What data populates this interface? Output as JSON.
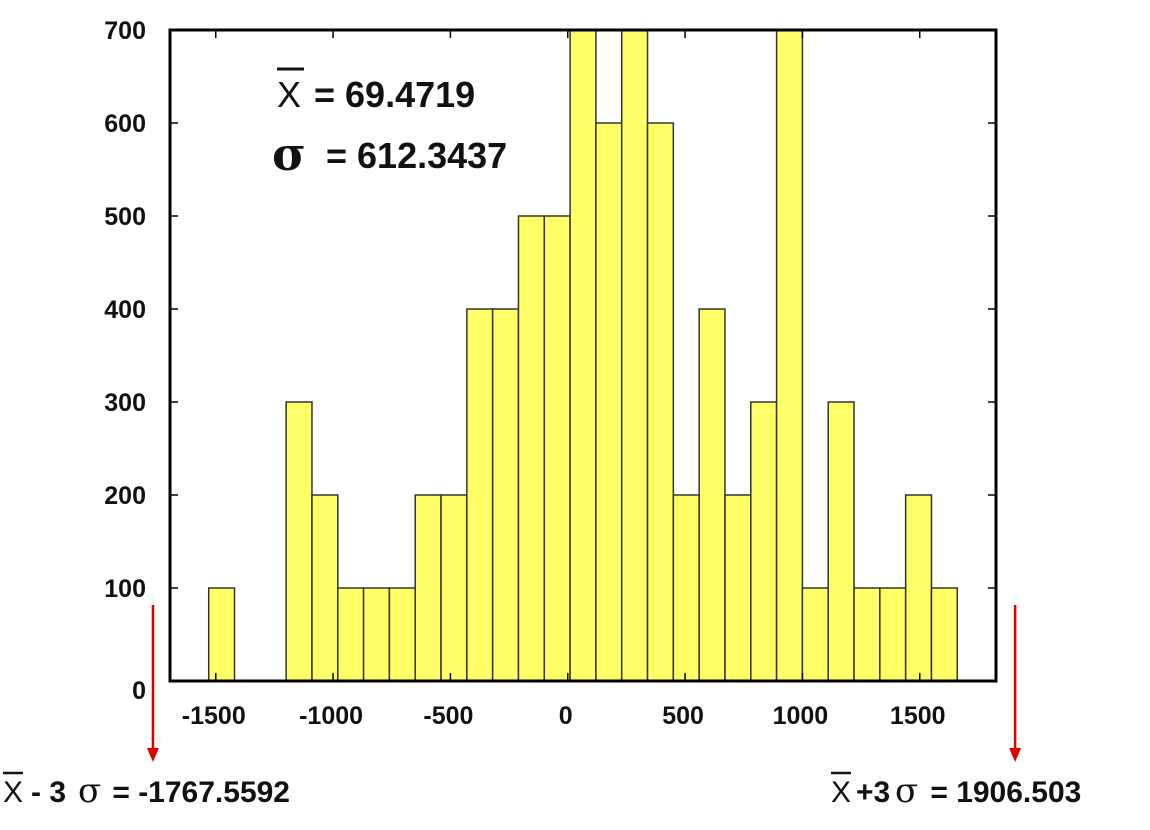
{
  "chart_data": {
    "type": "bar",
    "xlim": [
      -1695,
      1825
    ],
    "ylim": [
      0,
      700
    ],
    "x_ticks": [
      -1500,
      -1000,
      -500,
      0,
      500,
      1000,
      1500
    ],
    "x_tick_labels": [
      "-1500",
      "-1000",
      "-500",
      "0",
      "500",
      "1000",
      "1500"
    ],
    "y_ticks": [
      0,
      100,
      200,
      300,
      400,
      500,
      600,
      700
    ],
    "y_tick_labels": [
      "0",
      "100",
      "200",
      "300",
      "400",
      "500",
      "600",
      "700"
    ],
    "bin_width": 110,
    "bins": [
      {
        "x0": -1530,
        "x1": -1420,
        "value": 100
      },
      {
        "x0": -1200,
        "x1": -1090,
        "value": 300
      },
      {
        "x0": -1090,
        "x1": -980,
        "value": 200
      },
      {
        "x0": -980,
        "x1": -870,
        "value": 100
      },
      {
        "x0": -870,
        "x1": -760,
        "value": 100
      },
      {
        "x0": -760,
        "x1": -650,
        "value": 100
      },
      {
        "x0": -650,
        "x1": -540,
        "value": 200
      },
      {
        "x0": -540,
        "x1": -430,
        "value": 200
      },
      {
        "x0": -430,
        "x1": -320,
        "value": 400
      },
      {
        "x0": -320,
        "x1": -210,
        "value": 400
      },
      {
        "x0": -210,
        "x1": -100,
        "value": 500
      },
      {
        "x0": -100,
        "x1": 10,
        "value": 500
      },
      {
        "x0": 10,
        "x1": 120,
        "value": 700
      },
      {
        "x0": 120,
        "x1": 230,
        "value": 600
      },
      {
        "x0": 230,
        "x1": 340,
        "value": 700
      },
      {
        "x0": 340,
        "x1": 450,
        "value": 600
      },
      {
        "x0": 450,
        "x1": 560,
        "value": 200
      },
      {
        "x0": 560,
        "x1": 670,
        "value": 400
      },
      {
        "x0": 670,
        "x1": 780,
        "value": 200
      },
      {
        "x0": 780,
        "x1": 890,
        "value": 300
      },
      {
        "x0": 890,
        "x1": 1000,
        "value": 700
      },
      {
        "x0": 1000,
        "x1": 1110,
        "value": 100
      },
      {
        "x0": 1110,
        "x1": 1220,
        "value": 300
      },
      {
        "x0": 1220,
        "x1": 1330,
        "value": 100
      },
      {
        "x0": 1330,
        "x1": 1440,
        "value": 100
      },
      {
        "x0": 1440,
        "x1": 1550,
        "value": 200
      },
      {
        "x0": 1550,
        "x1": 1660,
        "value": 100
      }
    ],
    "bar_color": "#ffff66",
    "bar_stroke": "#333333",
    "grid": false,
    "annotations": {
      "mean_symbol": "X",
      "mean_text": "= 69.4719",
      "sigma_symbol": "σ",
      "sigma_text": "= 612.3437"
    },
    "limits": {
      "arrow_color": "#e00000",
      "lower": {
        "x": -1767.5592,
        "symbol": "X",
        "text_mid": "- 3",
        "sigma": "σ",
        "text_end": " = -1767.5592"
      },
      "upper": {
        "x": 1906.503,
        "symbol": "X",
        "text_mid": "+3",
        "sigma": "σ",
        "text_end": " = 1906.503"
      }
    }
  }
}
